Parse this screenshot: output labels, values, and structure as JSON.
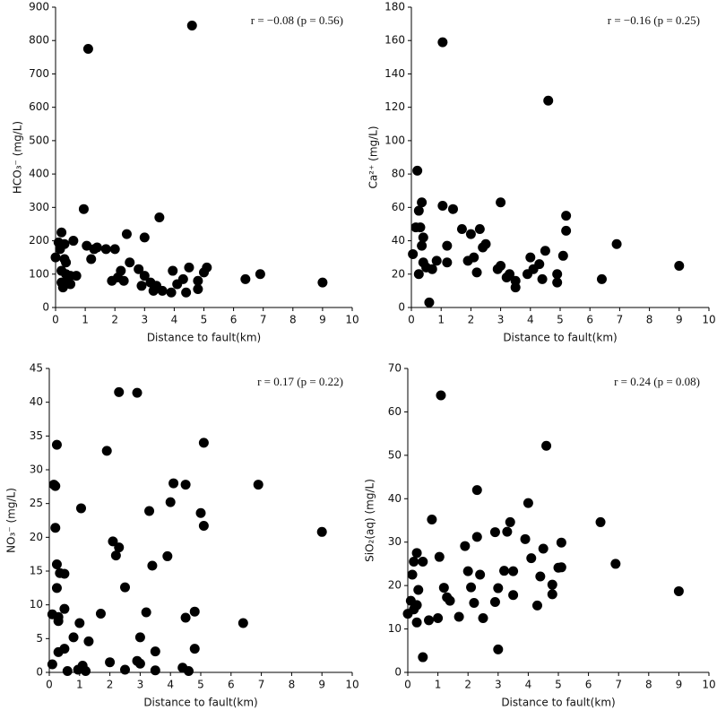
{
  "chart_data": [
    {
      "type": "scatter",
      "annotation": "r = −0.08 (p = 0.56)",
      "xlabel": "Distance to fault(km)",
      "ylabel": "HCO₃⁻ (mg/L)",
      "color": "#000000",
      "xlim": [
        0,
        10
      ],
      "xticks": [
        0,
        1,
        2,
        3,
        4,
        5,
        6,
        7,
        8,
        9,
        10
      ],
      "ylim": [
        0,
        900
      ],
      "yticks": [
        0,
        100,
        200,
        300,
        400,
        500,
        600,
        700,
        800,
        900
      ],
      "x": [
        0.0,
        0.1,
        0.15,
        0.2,
        0.2,
        0.2,
        0.25,
        0.3,
        0.3,
        0.35,
        0.35,
        0.4,
        0.5,
        0.5,
        0.6,
        0.7,
        0.95,
        1.05,
        1.1,
        1.2,
        1.3,
        1.4,
        1.7,
        1.9,
        2.0,
        2.1,
        2.2,
        2.3,
        2.4,
        2.5,
        2.8,
        2.9,
        3.0,
        3.0,
        3.2,
        3.3,
        3.4,
        3.5,
        3.6,
        3.9,
        3.95,
        4.1,
        4.3,
        4.4,
        4.5,
        4.6,
        4.8,
        4.8,
        5.0,
        5.1,
        6.4,
        6.9,
        9.0
      ],
      "values": [
        150,
        195,
        175,
        225,
        110,
        75,
        60,
        145,
        190,
        100,
        135,
        85,
        95,
        70,
        200,
        95,
        295,
        185,
        775,
        145,
        175,
        180,
        175,
        80,
        175,
        90,
        110,
        80,
        220,
        135,
        115,
        65,
        210,
        95,
        75,
        50,
        65,
        270,
        50,
        45,
        110,
        70,
        85,
        45,
        120,
        845,
        55,
        80,
        105,
        120,
        85,
        100,
        75
      ]
    },
    {
      "type": "scatter",
      "annotation": "r = −0.16 (p = 0.25)",
      "xlabel": "Distance to fault(km)",
      "ylabel": "Ca²⁺ (mg/L)",
      "color": "#000000",
      "xlim": [
        0,
        10
      ],
      "xticks": [
        0,
        1,
        2,
        3,
        4,
        5,
        6,
        7,
        8,
        9,
        10
      ],
      "ylim": [
        0,
        180
      ],
      "yticks": [
        0,
        20,
        40,
        60,
        80,
        100,
        120,
        140,
        160,
        180
      ],
      "x": [
        0.05,
        0.15,
        0.2,
        0.25,
        0.25,
        0.3,
        0.35,
        0.35,
        0.4,
        0.4,
        0.5,
        0.6,
        0.7,
        0.85,
        1.05,
        1.05,
        1.2,
        1.2,
        1.4,
        1.7,
        1.9,
        2.0,
        2.1,
        2.2,
        2.3,
        2.4,
        2.5,
        2.9,
        3.0,
        3.0,
        3.2,
        3.3,
        3.5,
        3.5,
        3.9,
        4.0,
        4.1,
        4.3,
        4.4,
        4.5,
        4.6,
        4.9,
        4.9,
        5.1,
        5.2,
        5.2,
        6.4,
        6.9,
        9.0
      ],
      "values": [
        32,
        48,
        82,
        20,
        58,
        48,
        63,
        37,
        42,
        27,
        24,
        3,
        23,
        28,
        61,
        159,
        37,
        27,
        59,
        47,
        28,
        44,
        30,
        21,
        47,
        36,
        38,
        23,
        63,
        25,
        18,
        20,
        16,
        12,
        20,
        30,
        23,
        26,
        17,
        34,
        124,
        20,
        15,
        31,
        46,
        55,
        17,
        38,
        25
      ]
    },
    {
      "type": "scatter",
      "annotation": "r = 0.17 (p = 0.22)",
      "xlabel": "Distance to fault(km)",
      "ylabel": "NO₃⁻ (mg/L)",
      "color": "#000000",
      "xlim": [
        0,
        10
      ],
      "xticks": [
        0,
        1,
        2,
        3,
        4,
        5,
        6,
        7,
        8,
        9,
        10
      ],
      "ylim": [
        0,
        45
      ],
      "yticks": [
        0,
        5,
        10,
        15,
        20,
        25,
        30,
        35,
        40,
        45
      ],
      "x": [
        0.1,
        0.1,
        0.15,
        0.2,
        0.2,
        0.25,
        0.25,
        0.25,
        0.3,
        0.3,
        0.3,
        0.35,
        0.5,
        0.5,
        0.5,
        0.6,
        0.8,
        0.95,
        1.0,
        1.05,
        1.1,
        1.2,
        1.3,
        1.7,
        1.9,
        2.0,
        2.1,
        2.2,
        2.3,
        2.3,
        2.5,
        2.5,
        2.9,
        2.9,
        3.0,
        3.0,
        3.2,
        3.3,
        3.4,
        3.5,
        3.5,
        3.9,
        4.0,
        4.1,
        4.4,
        4.5,
        4.5,
        4.6,
        4.8,
        4.8,
        5.0,
        5.1,
        5.1,
        6.4,
        6.9,
        9.0
      ],
      "values": [
        1.2,
        8.6,
        27.8,
        27.6,
        21.4,
        33.7,
        16,
        12.5,
        8.2,
        7.6,
        3,
        14.7,
        14.6,
        9.4,
        3.5,
        0.2,
        5.2,
        0.4,
        7.3,
        24.3,
        1,
        0.2,
        4.6,
        8.7,
        32.8,
        1.5,
        19.4,
        17.3,
        41.5,
        18.5,
        0.4,
        12.6,
        41.4,
        1.7,
        5.2,
        1.3,
        8.9,
        23.9,
        15.8,
        3.1,
        0.3,
        17.2,
        25.2,
        28,
        0.7,
        27.8,
        8.1,
        0.2,
        9,
        3.5,
        23.6,
        34,
        21.7,
        7.3,
        27.8,
        20.8
      ]
    },
    {
      "type": "scatter",
      "annotation": "r = 0.24 (p = 0.08)",
      "xlabel": "Distance to fault(km)",
      "ylabel": "SiO₂(aq) (mg/L)",
      "color": "#000000",
      "xlim": [
        0,
        10
      ],
      "xticks": [
        0,
        1,
        2,
        3,
        4,
        5,
        6,
        7,
        8,
        9,
        10
      ],
      "ylim": [
        0,
        70
      ],
      "yticks": [
        0,
        10,
        20,
        30,
        40,
        50,
        60,
        70
      ],
      "x": [
        0.0,
        0.1,
        0.15,
        0.2,
        0.2,
        0.3,
        0.3,
        0.35,
        0.3,
        0.5,
        0.5,
        0.7,
        0.8,
        1.0,
        1.05,
        1.1,
        1.2,
        1.3,
        1.4,
        1.7,
        1.9,
        2.0,
        2.1,
        2.2,
        2.3,
        2.3,
        2.4,
        2.5,
        2.9,
        2.9,
        3.0,
        3.0,
        3.2,
        3.3,
        3.4,
        3.5,
        3.5,
        3.9,
        4.0,
        4.1,
        4.3,
        4.4,
        4.5,
        4.6,
        4.8,
        4.8,
        5.0,
        5.1,
        5.1,
        6.4,
        6.9,
        9.0
      ],
      "values": [
        13.5,
        16.5,
        22.5,
        25.5,
        14.5,
        15.5,
        27.5,
        19,
        11.5,
        25.5,
        3.5,
        12,
        35.2,
        12.5,
        26.6,
        63.8,
        19.5,
        17.3,
        16.5,
        12.8,
        29.1,
        23.3,
        19.6,
        16,
        42,
        31.2,
        22.5,
        12.5,
        32.3,
        16.2,
        5.3,
        19.4,
        23.4,
        32.4,
        34.6,
        17.8,
        23.3,
        30.7,
        39,
        26.3,
        15.4,
        22.1,
        28.5,
        52.2,
        18,
        20.2,
        24.1,
        29.9,
        24.2,
        34.6,
        25,
        18.7
      ]
    }
  ]
}
